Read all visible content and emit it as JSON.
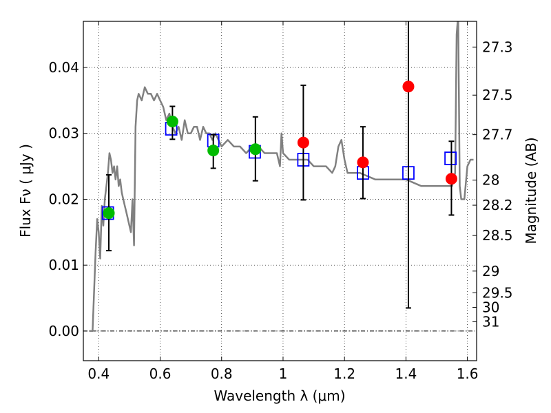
{
  "chart_data": {
    "type": "scatter",
    "xlabel": "Wavelength  λ (μm)",
    "ylabel": "Flux  Fν  ( μJy )",
    "ylabel_right": "Magnitude (AB)",
    "xlim": [
      0.35,
      1.63
    ],
    "ylim": [
      -0.0045,
      0.047
    ],
    "grid": true,
    "x_ticks": [
      0.4,
      0.6,
      0.8,
      1.0,
      1.2,
      1.4,
      1.6
    ],
    "x_tick_labels": [
      "0.4",
      "0.6",
      "0.8",
      "1",
      "1.2",
      "1.4",
      "1.6"
    ],
    "y_ticks": [
      0.0,
      0.01,
      0.02,
      0.03,
      0.04
    ],
    "y_tick_labels": [
      "0.00",
      "0.01",
      "0.02",
      "0.03",
      "0.04"
    ],
    "right_ticks": [
      {
        "label": "27.3",
        "flux": 0.0431
      },
      {
        "label": "27.5",
        "flux": 0.0358
      },
      {
        "label": "27.7",
        "flux": 0.0298
      },
      {
        "label": "28",
        "flux": 0.0229
      },
      {
        "label": "28.2",
        "flux": 0.0191
      },
      {
        "label": "28.5",
        "flux": 0.0145
      },
      {
        "label": "29",
        "flux": 0.0091
      },
      {
        "label": "29.5",
        "flux": 0.0058
      },
      {
        "label": "30",
        "flux": 0.0036
      },
      {
        "label": "31",
        "flux": 0.0014
      }
    ],
    "series": [
      {
        "type": "line",
        "color": "#808080",
        "x": [
          0.37,
          0.375,
          0.38,
          0.385,
          0.39,
          0.395,
          0.4,
          0.405,
          0.41,
          0.415,
          0.42,
          0.425,
          0.43,
          0.435,
          0.44,
          0.445,
          0.45,
          0.455,
          0.46,
          0.465,
          0.47,
          0.475,
          0.48,
          0.485,
          0.49,
          0.495,
          0.5,
          0.505,
          0.51,
          0.515,
          0.52,
          0.525,
          0.53,
          0.54,
          0.55,
          0.56,
          0.57,
          0.58,
          0.59,
          0.6,
          0.61,
          0.62,
          0.63,
          0.64,
          0.65,
          0.66,
          0.67,
          0.68,
          0.69,
          0.7,
          0.71,
          0.72,
          0.73,
          0.74,
          0.75,
          0.76,
          0.77,
          0.78,
          0.79,
          0.8,
          0.82,
          0.84,
          0.86,
          0.88,
          0.9,
          0.92,
          0.94,
          0.96,
          0.98,
          0.99,
          0.995,
          1.0,
          1.02,
          1.05,
          1.08,
          1.1,
          1.12,
          1.14,
          1.16,
          1.17,
          1.18,
          1.19,
          1.2,
          1.21,
          1.22,
          1.25,
          1.3,
          1.35,
          1.4,
          1.45,
          1.5,
          1.55,
          1.56,
          1.565,
          1.57,
          1.575,
          1.58,
          1.59,
          1.6,
          1.61,
          1.62
        ],
        "y": [
          0.0,
          0.0,
          0.0,
          0.006,
          0.012,
          0.017,
          0.015,
          0.011,
          0.019,
          0.016,
          0.02,
          0.022,
          0.024,
          0.027,
          0.026,
          0.024,
          0.025,
          0.023,
          0.025,
          0.022,
          0.023,
          0.021,
          0.02,
          0.019,
          0.018,
          0.017,
          0.016,
          0.015,
          0.02,
          0.013,
          0.031,
          0.035,
          0.036,
          0.035,
          0.037,
          0.036,
          0.036,
          0.035,
          0.036,
          0.035,
          0.034,
          0.032,
          0.033,
          0.031,
          0.03,
          0.031,
          0.029,
          0.032,
          0.03,
          0.03,
          0.031,
          0.031,
          0.029,
          0.031,
          0.03,
          0.03,
          0.029,
          0.03,
          0.029,
          0.028,
          0.029,
          0.028,
          0.028,
          0.027,
          0.028,
          0.028,
          0.027,
          0.027,
          0.027,
          0.025,
          0.03,
          0.027,
          0.026,
          0.026,
          0.026,
          0.025,
          0.025,
          0.025,
          0.024,
          0.025,
          0.028,
          0.029,
          0.026,
          0.024,
          0.024,
          0.024,
          0.023,
          0.023,
          0.023,
          0.022,
          0.022,
          0.022,
          0.024,
          0.045,
          0.048,
          0.022,
          0.02,
          0.02,
          0.025,
          0.026,
          0.026
        ]
      },
      {
        "type": "squares",
        "color": "#0000ff",
        "x": [
          0.43,
          0.636,
          0.773,
          0.908,
          1.066,
          1.26,
          1.408,
          1.545
        ],
        "y": [
          0.0179,
          0.0307,
          0.0289,
          0.0272,
          0.026,
          0.024,
          0.024,
          0.0262
        ]
      },
      {
        "type": "errorbars",
        "color": "#000000",
        "x": [
          0.433,
          0.64,
          0.773,
          0.91,
          1.066,
          1.26,
          1.408,
          1.548
        ],
        "low": [
          0.0122,
          0.0291,
          0.0247,
          0.0228,
          0.0199,
          0.0201,
          0.0035,
          0.0176
        ],
        "high": [
          0.0237,
          0.0341,
          0.0298,
          0.0325,
          0.0373,
          0.031,
          0.048,
          0.0288
        ]
      },
      {
        "type": "points",
        "color": "#00bb00",
        "x": [
          0.433,
          0.64,
          0.773,
          0.91
        ],
        "y": [
          0.0179,
          0.0318,
          0.0274,
          0.0276
        ]
      },
      {
        "type": "points",
        "color": "#ff0000",
        "x": [
          1.066,
          1.26,
          1.408,
          1.548
        ],
        "y": [
          0.0286,
          0.0256,
          0.0371,
          0.0231
        ]
      }
    ]
  }
}
